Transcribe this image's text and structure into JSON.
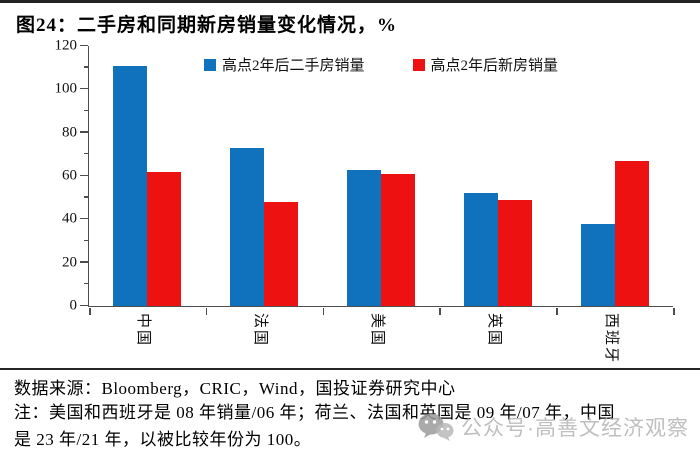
{
  "page": {
    "title": "图24：二手房和同期新房销量变化情况，%"
  },
  "chart_data": {
    "type": "bar",
    "title": "二手房和同期新房销量变化情况，%",
    "categories": [
      "中国",
      "法国",
      "美国",
      "英国",
      "西班牙"
    ],
    "series": [
      {
        "name": "高点2年后二手房销量",
        "color": "#1072BC",
        "values": [
          111,
          73,
          63,
          52,
          38
        ]
      },
      {
        "name": "高点2年后新房销量",
        "color": "#EE1111",
        "values": [
          62,
          48,
          61,
          49,
          67
        ]
      }
    ],
    "ylim": [
      0,
      120
    ],
    "yticks": [
      0,
      20,
      40,
      60,
      80,
      100,
      120
    ],
    "ytick_minor_step": 10,
    "grid": false,
    "legend_position": "top-center",
    "xlabel_rotation_deg": 90
  },
  "footer": {
    "source": "数据来源：Bloomberg，CRIC，Wind，国投证券研究中心",
    "note_lines": [
      "注：美国和西班牙是 08 年销量/06 年；荷兰、法国和英国是 09 年/07 年，中国",
      "是 23 年/21 年，以被比较年份为 100。"
    ],
    "watermark": "公众号·高善文经济观察"
  },
  "colors": {
    "secondhand_series": "#1072BC",
    "newhome_series": "#EE1111",
    "axis": "#4d4d4d",
    "top_rule": "#232323",
    "watermark_gray": "#aaaaaa"
  },
  "icons": {
    "watermark_icon": "wechat-bubbles-icon"
  }
}
